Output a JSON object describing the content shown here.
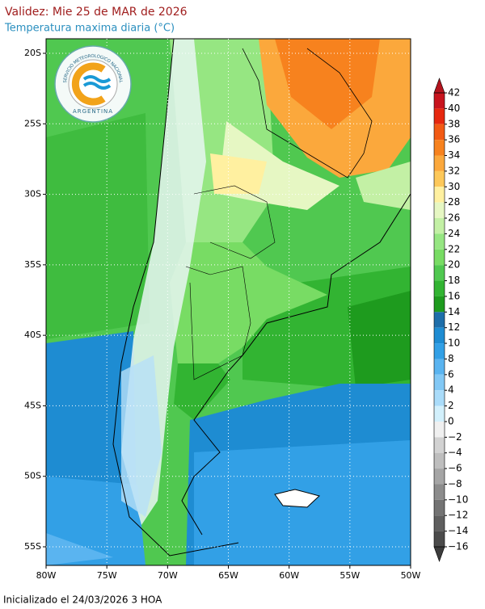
{
  "header": {
    "title": "Validez: Mie 25 de MAR de 2026",
    "subtitle": "Temperatura maxima diaria (°C)"
  },
  "logo": {
    "ring_text": "SERVICIO METEOROLOGICO NACIONAL",
    "country": "ARGENTINA"
  },
  "map": {
    "lat_ticks": [
      {
        "value": -20,
        "label": "20S"
      },
      {
        "value": -25,
        "label": "25S"
      },
      {
        "value": -30,
        "label": "30S"
      },
      {
        "value": -35,
        "label": "35S"
      },
      {
        "value": -40,
        "label": "40S"
      },
      {
        "value": -45,
        "label": "45S"
      },
      {
        "value": -50,
        "label": "50S"
      },
      {
        "value": -55,
        "label": "55S"
      }
    ],
    "lon_ticks": [
      {
        "value": -80,
        "label": "80W"
      },
      {
        "value": -75,
        "label": "75W"
      },
      {
        "value": -70,
        "label": "70W"
      },
      {
        "value": -65,
        "label": "65W"
      },
      {
        "value": -60,
        "label": "60W"
      },
      {
        "value": -55,
        "label": "55W"
      },
      {
        "value": -50,
        "label": "50W"
      }
    ]
  },
  "colorbar": {
    "ticks": [
      42,
      40,
      38,
      36,
      34,
      32,
      30,
      28,
      26,
      24,
      22,
      20,
      18,
      16,
      14,
      12,
      10,
      8,
      6,
      4,
      2,
      0,
      {
        "value": -2,
        "label": "−2"
      },
      {
        "value": -4,
        "label": "−4"
      },
      {
        "value": -6,
        "label": "−6"
      },
      {
        "value": -8,
        "label": "−8"
      },
      {
        "value": -10,
        "label": "−10"
      },
      {
        "value": -12,
        "label": "−12"
      },
      {
        "value": -14,
        "label": "−14"
      },
      {
        "value": -16,
        "label": "−16"
      }
    ],
    "colors": [
      "#c8141e",
      "#e6280f",
      "#f25a14",
      "#f7821e",
      "#fba83c",
      "#fdc85a",
      "#fff0a0",
      "#e6f7c3",
      "#c3f0a5",
      "#96e682",
      "#78dc64",
      "#50c850",
      "#32b432",
      "#1e9b1e",
      "#1e6eaa",
      "#1e8cd2",
      "#32a0e6",
      "#5ab4f0",
      "#82c8f5",
      "#aadcfa",
      "#d2f0fc",
      "#f0f0f0",
      "#d2d2d2",
      "#bebebe",
      "#a5a5a5",
      "#8c8c8c",
      "#737373",
      "#5f5f5f",
      "#4b4b4b"
    ],
    "over_color": "#b4141e",
    "under_color": "#3c3c3c"
  },
  "footer": {
    "text": "Inicializado el 24/03/2026 3 HOA"
  }
}
